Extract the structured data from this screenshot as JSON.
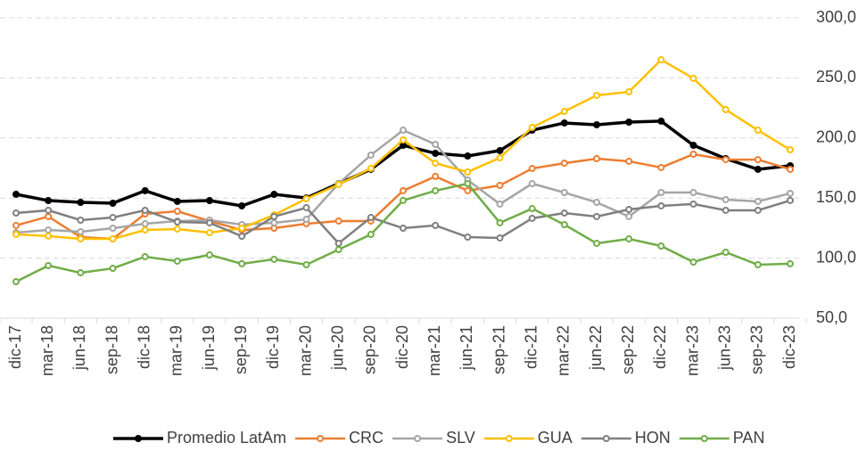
{
  "chart_data": {
    "type": "line",
    "categories": [
      "dic-17",
      "mar-18",
      "jun-18",
      "sep-18",
      "dic-18",
      "mar-19",
      "jun-19",
      "sep-19",
      "dic-19",
      "mar-20",
      "jun-20",
      "sep-20",
      "dic-20",
      "mar-21",
      "jun-21",
      "sep-21",
      "dic-21",
      "mar-22",
      "jun-22",
      "sep-22",
      "dic-22",
      "mar-23",
      "jun-23",
      "sep-23",
      "dic-23"
    ],
    "series": [
      {
        "name": "Promedio LatAm",
        "color": "#000000",
        "values": [
          153.1,
          147.9,
          146.4,
          145.7,
          156.1,
          147.2,
          147.9,
          143.5,
          153.1,
          150.1,
          162,
          173.9,
          193.9,
          187.2,
          185,
          189.5,
          206.5,
          212.5,
          211,
          213.2,
          214,
          193.9,
          182.8,
          173.9,
          176.9
        ]
      },
      {
        "name": "CRC",
        "color": "#ed7d31",
        "values": [
          127.2,
          134.6,
          117.5,
          116,
          136.8,
          139,
          130.9,
          123.4,
          124.9,
          128.6,
          130.9,
          130.9,
          156.1,
          168,
          156.1,
          160.5,
          174.6,
          179,
          182.8,
          180.6,
          175.4,
          186.5,
          182,
          182,
          173.9
        ]
      },
      {
        "name": "SLV",
        "color": "#a5a5a5",
        "values": [
          121.2,
          123.4,
          122,
          124.9,
          128.6,
          130.9,
          131.6,
          127.9,
          129.4,
          132.3,
          162,
          185.8,
          206.5,
          194.7,
          165,
          145,
          162,
          154.6,
          146.4,
          134.6,
          154.6,
          154.6,
          148.7,
          147.2,
          153.9
        ]
      },
      {
        "name": "GUA",
        "color": "#ffc000",
        "values": [
          119.8,
          118.3,
          116,
          116,
          123.4,
          124.2,
          121.2,
          124.9,
          136,
          149.4,
          161.3,
          174.6,
          198.4,
          179,
          171.7,
          183.5,
          208.8,
          222.1,
          235.5,
          238.4,
          265.1,
          249.6,
          223.6,
          206.5,
          190.2
        ]
      },
      {
        "name": "HON",
        "color": "#7f7f7f",
        "values": [
          137.5,
          139.8,
          131.6,
          133.8,
          139.8,
          130.1,
          129.4,
          118.2,
          134.6,
          142,
          112.3,
          133.8,
          124.9,
          127.2,
          117.5,
          116.8,
          133.1,
          137.5,
          134.6,
          140.5,
          143.5,
          145,
          139.8,
          139.8,
          148
        ]
      },
      {
        "name": "PAN",
        "color": "#70ad47",
        "values": [
          80.4,
          93.8,
          87.8,
          91.5,
          101.2,
          97.5,
          102.7,
          95.3,
          99,
          94.5,
          107.1,
          119.7,
          148,
          156.1,
          162,
          129.4,
          141.2,
          127.9,
          112.3,
          116,
          110.1,
          96.7,
          104.9,
          94.5,
          95.3
        ]
      }
    ],
    "ylim": [
      50,
      300
    ],
    "yticks": [
      {
        "value": 50,
        "label": "50,0"
      },
      {
        "value": 100,
        "label": "100,0"
      },
      {
        "value": 150,
        "label": "150,0"
      },
      {
        "value": 200,
        "label": "200,0"
      },
      {
        "value": 250,
        "label": "250,0"
      },
      {
        "value": 300,
        "label": "300,0"
      }
    ],
    "grid": true,
    "legend": "bottom"
  }
}
